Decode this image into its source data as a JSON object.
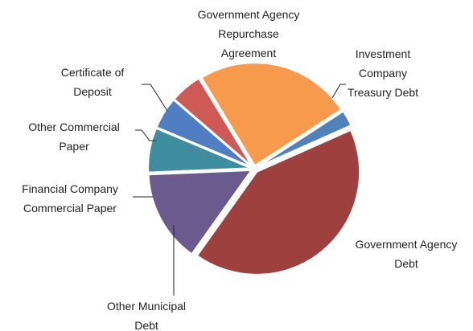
{
  "chart_data": {
    "type": "pie",
    "title": "",
    "start_angle_deg": 57,
    "legend": "none",
    "slices": [
      {
        "label": [
          "Investment",
          "Company",
          "Treasury Debt"
        ],
        "value": 2.5,
        "color": "#4f81bd"
      },
      {
        "label": [
          "Government Agency",
          "Debt"
        ],
        "value": 41.5,
        "color": "#9e413e"
      },
      {
        "label": [
          "Other Municipal",
          "Debt"
        ],
        "value": 14.5,
        "color": "#6b5a8e"
      },
      {
        "label": [
          "Financial Company",
          "Commercial Paper"
        ],
        "value": 7.0,
        "color": "#3e8ea0"
      },
      {
        "label": [
          "Other Commercial",
          "Paper"
        ],
        "value": 5.0,
        "color": "#4f7ec2"
      },
      {
        "label": [
          "Certificate of",
          "Deposit"
        ],
        "value": 5.0,
        "color": "#cd5a55"
      },
      {
        "label": [
          "Government Agency",
          "Repurchase",
          "Agreement"
        ],
        "value": 24.5,
        "color": "#f79a4b"
      }
    ]
  }
}
